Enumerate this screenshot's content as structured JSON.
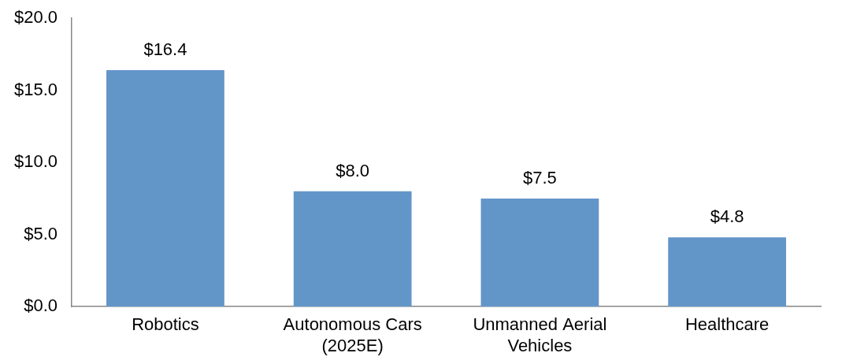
{
  "chart_data": {
    "type": "bar",
    "categories": [
      "Robotics",
      "Autonomous Cars (2025E)",
      "Unmanned Aerial Vehicles",
      "Healthcare"
    ],
    "values": [
      16.4,
      8.0,
      7.5,
      4.8
    ],
    "value_labels": [
      "$16.4",
      "$8.0",
      "$7.5",
      "$4.8"
    ],
    "data_labels": true,
    "color": "#6396c8",
    "ylim": [
      0,
      20
    ],
    "yticks": [
      {
        "value": 0,
        "label": "$0.0"
      },
      {
        "value": 5,
        "label": "$5.0"
      },
      {
        "value": 10,
        "label": "$10.0"
      },
      {
        "value": 15,
        "label": "$15.0"
      },
      {
        "value": 20,
        "label": "$20.0"
      }
    ],
    "grid": false
  }
}
